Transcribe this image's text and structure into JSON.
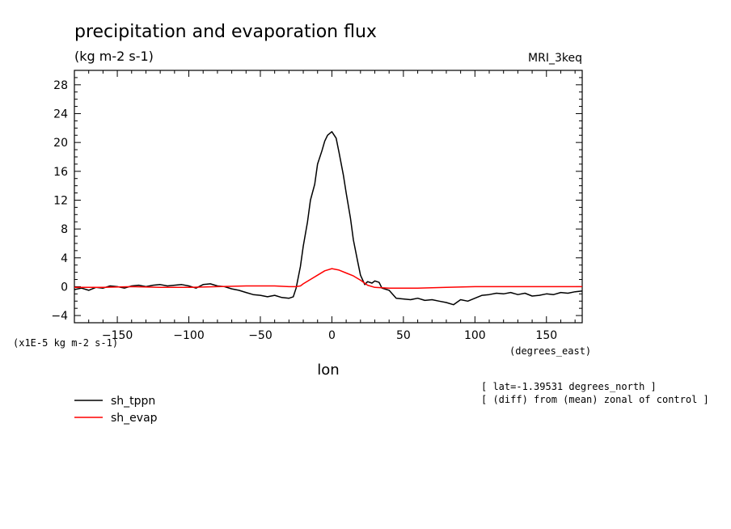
{
  "chart_data": {
    "type": "line",
    "title": "precipitation and evaporation flux",
    "subtitle": "(kg m-2 s-1)",
    "model": "MRI_3keq",
    "xlabel": "lon",
    "x_units": "(degrees_east)",
    "y_units": "(x1E-5 kg m-2 s-1)",
    "xlim": [
      -180,
      175
    ],
    "ylim": [
      -5,
      30
    ],
    "x_ticks": [
      -150,
      -100,
      -50,
      0,
      50,
      100,
      150
    ],
    "y_ticks": [
      -4,
      0,
      4,
      8,
      12,
      16,
      20,
      24,
      28
    ],
    "notes": [
      "[ lat=-1.39531 degrees_north ]",
      "[ (diff) from (mean) zonal of control ]"
    ],
    "grid": false,
    "legend_position": "below-left",
    "series": [
      {
        "name": "sh_tppn",
        "color": "#000000",
        "x": [
          -180,
          -175,
          -170,
          -165,
          -160,
          -155,
          -150,
          -145,
          -140,
          -135,
          -130,
          -125,
          -120,
          -115,
          -110,
          -105,
          -100,
          -95,
          -90,
          -85,
          -80,
          -75,
          -70,
          -65,
          -60,
          -55,
          -50,
          -45,
          -40,
          -35,
          -30,
          -27,
          -25,
          -22,
          -20,
          -17,
          -15,
          -12,
          -10,
          -7,
          -5,
          -3,
          0,
          3,
          5,
          8,
          10,
          13,
          15,
          18,
          20,
          23,
          25,
          28,
          30,
          33,
          35,
          40,
          45,
          50,
          55,
          60,
          65,
          70,
          75,
          80,
          85,
          90,
          95,
          100,
          105,
          110,
          115,
          120,
          125,
          130,
          135,
          140,
          145,
          150,
          155,
          160,
          165,
          170,
          175
        ],
        "values": [
          -0.4,
          -0.2,
          -0.5,
          -0.1,
          -0.2,
          0.1,
          0.0,
          -0.2,
          0.1,
          0.2,
          0.0,
          0.2,
          0.3,
          0.1,
          0.2,
          0.3,
          0.1,
          -0.2,
          0.3,
          0.4,
          0.1,
          0.0,
          -0.3,
          -0.5,
          -0.8,
          -1.1,
          -1.2,
          -1.4,
          -1.2,
          -1.5,
          -1.6,
          -1.4,
          -0.2,
          2.8,
          5.6,
          9.0,
          12.0,
          14.2,
          17.0,
          18.8,
          20.2,
          21.0,
          21.5,
          20.6,
          18.6,
          15.5,
          13.0,
          9.5,
          6.5,
          3.5,
          1.6,
          0.3,
          0.7,
          0.5,
          0.8,
          0.6,
          -0.2,
          -0.5,
          -1.6,
          -1.7,
          -1.8,
          -1.6,
          -1.9,
          -1.8,
          -2.0,
          -2.2,
          -2.5,
          -1.8,
          -2.0,
          -1.6,
          -1.2,
          -1.1,
          -0.9,
          -1.0,
          -0.8,
          -1.1,
          -0.9,
          -1.3,
          -1.2,
          -1.0,
          -1.1,
          -0.8,
          -0.9,
          -0.7,
          -0.6
        ]
      },
      {
        "name": "sh_evap",
        "color": "#ff0000",
        "x": [
          -180,
          -160,
          -140,
          -120,
          -100,
          -80,
          -60,
          -40,
          -30,
          -25,
          -22,
          -20,
          -15,
          -10,
          -5,
          0,
          5,
          10,
          15,
          20,
          25,
          30,
          40,
          50,
          60,
          80,
          100,
          120,
          140,
          160,
          175
        ],
        "values": [
          -0.1,
          -0.1,
          0.0,
          -0.1,
          -0.1,
          0.0,
          0.1,
          0.1,
          0.0,
          0.0,
          0.1,
          0.4,
          1.0,
          1.6,
          2.2,
          2.5,
          2.3,
          1.9,
          1.5,
          0.9,
          0.2,
          -0.1,
          -0.2,
          -0.2,
          -0.2,
          -0.1,
          0.0,
          0.0,
          0.0,
          0.0,
          0.0
        ]
      }
    ]
  }
}
